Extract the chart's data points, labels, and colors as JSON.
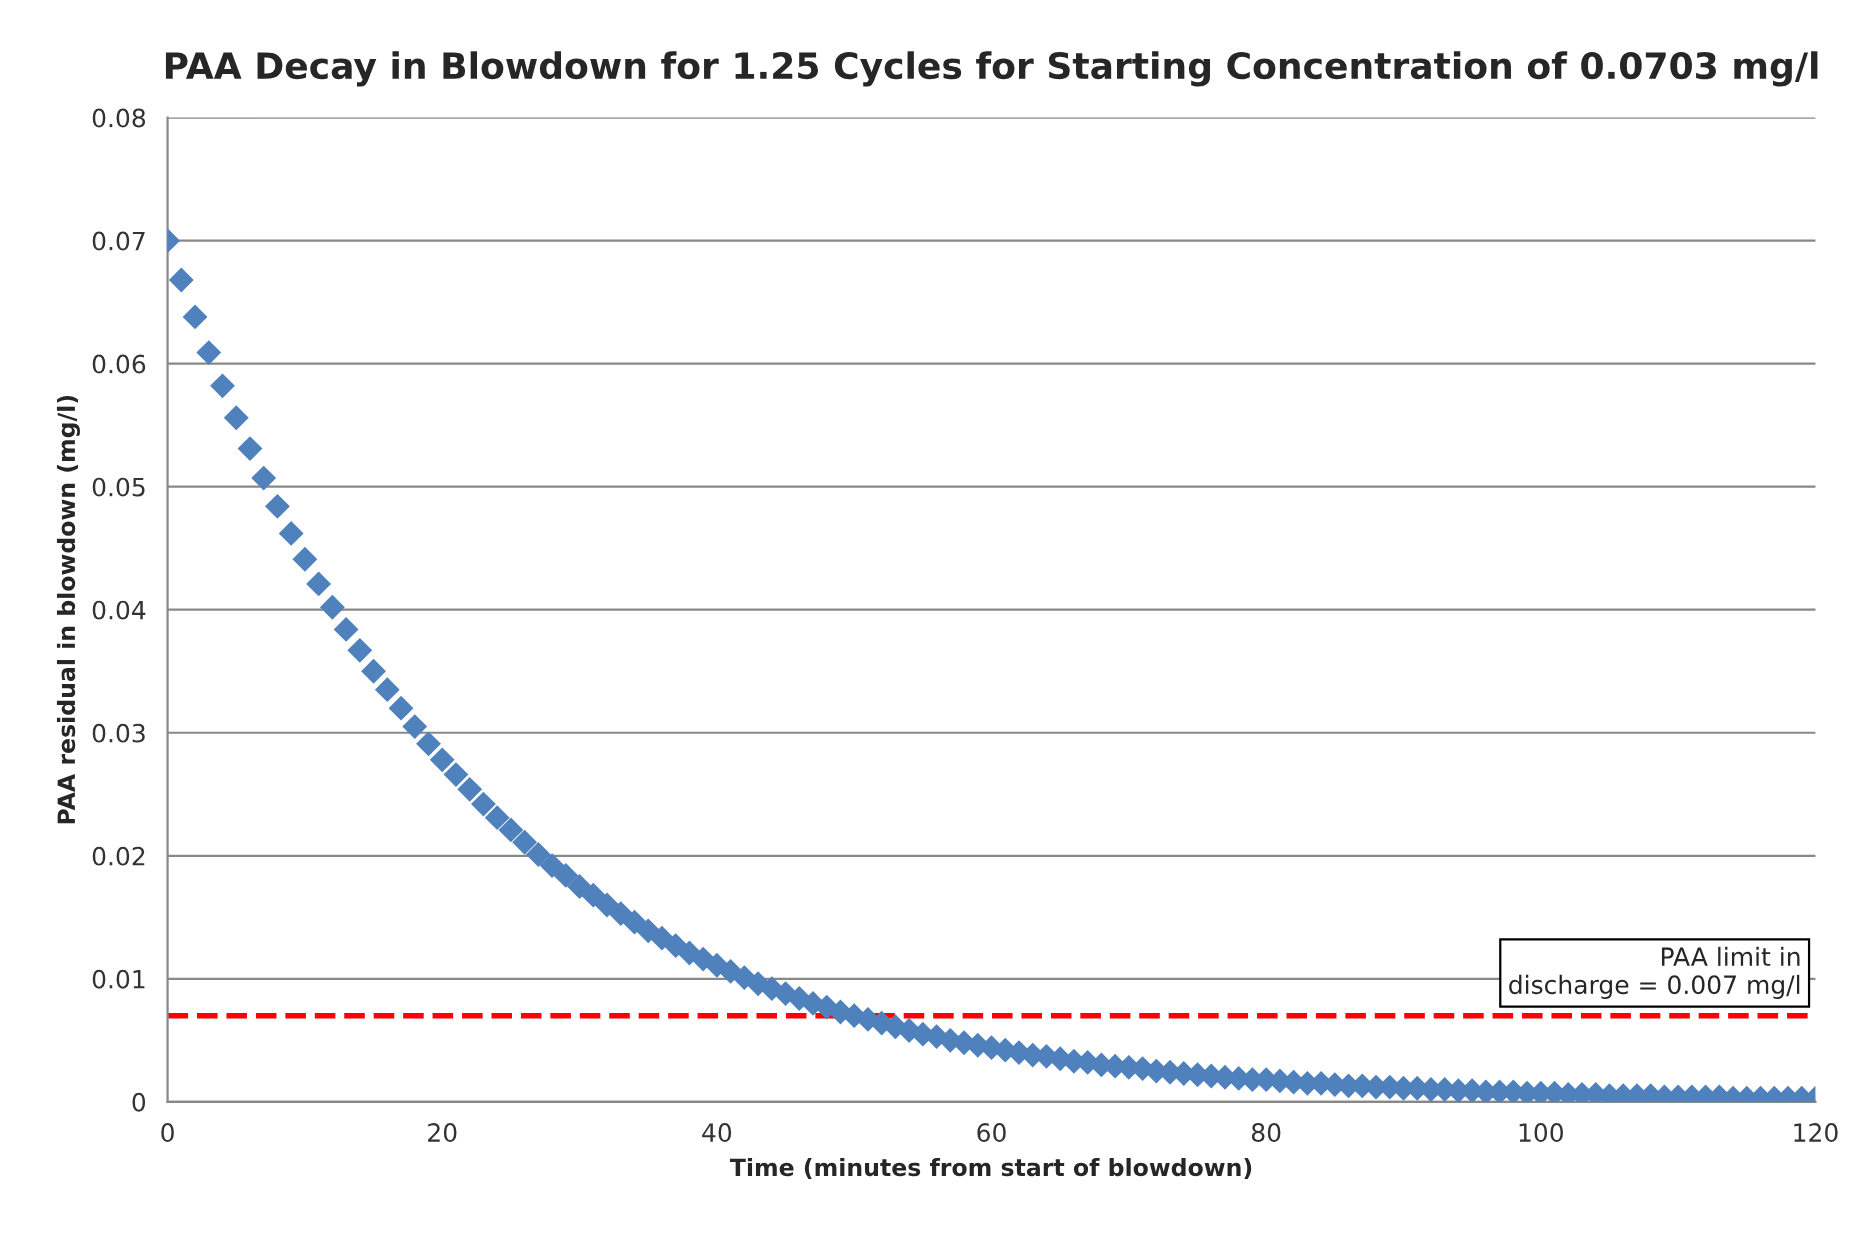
{
  "chart_data": {
    "type": "scatter",
    "title": "PAA Decay in Blowdown for 1.25 Cycles for Starting Concentration of 0.0703 mg/l",
    "xlabel": "Time (minutes from start of blowdown)",
    "ylabel": "PAA residual in blowdown (mg/l)",
    "x": [
      0,
      1,
      2,
      3,
      4,
      5,
      6,
      7,
      8,
      9,
      10,
      11,
      12,
      13,
      14,
      15,
      16,
      17,
      18,
      19,
      20,
      21,
      22,
      23,
      24,
      25,
      26,
      27,
      28,
      29,
      30,
      31,
      32,
      33,
      34,
      35,
      36,
      37,
      38,
      39,
      40,
      41,
      42,
      43,
      44,
      45,
      46,
      47,
      48,
      49,
      50,
      51,
      52,
      53,
      54,
      55,
      56,
      57,
      58,
      59,
      60,
      61,
      62,
      63,
      64,
      65,
      66,
      67,
      68,
      69,
      70,
      71,
      72,
      73,
      74,
      75,
      76,
      77,
      78,
      79,
      80,
      81,
      82,
      83,
      84,
      85,
      86,
      87,
      88,
      89,
      90,
      91,
      92,
      93,
      94,
      95,
      96,
      97,
      98,
      99,
      100,
      101,
      102,
      103,
      104,
      105,
      106,
      107,
      108,
      109,
      110,
      111,
      112,
      113,
      114,
      115,
      116,
      117,
      118,
      119,
      120
    ],
    "series": [
      {
        "color": "#4f81bd",
        "values": [
          0.07,
          0.0668,
          0.0638,
          0.0609,
          0.0582,
          0.0556,
          0.0531,
          0.0507,
          0.0484,
          0.0462,
          0.0441,
          0.0421,
          0.0402,
          0.0384,
          0.0367,
          0.035,
          0.0335,
          0.032,
          0.0305,
          0.0291,
          0.0278,
          0.0266,
          0.0254,
          0.0242,
          0.0231,
          0.0221,
          0.0211,
          0.0201,
          0.0192,
          0.0184,
          0.0175,
          0.0168,
          0.016,
          0.0153,
          0.0146,
          0.0139,
          0.0133,
          0.0127,
          0.0121,
          0.0116,
          0.0111,
          0.0106,
          0.0101,
          0.0096,
          0.0092,
          0.0088,
          0.0084,
          0.008,
          0.0077,
          0.0073,
          0.007,
          0.0067,
          0.0064,
          0.0061,
          0.0058,
          0.0055,
          0.0053,
          0.005,
          0.0048,
          0.0046,
          0.0044,
          0.0042,
          0.004,
          0.0038,
          0.0037,
          0.0035,
          0.0033,
          0.0032,
          0.003,
          0.0029,
          0.0028,
          0.0027,
          0.0025,
          0.0024,
          0.0023,
          0.0022,
          0.0021,
          0.002,
          0.0019,
          0.0018,
          0.0018,
          0.0017,
          0.0016,
          0.0015,
          0.0015,
          0.0014,
          0.0013,
          0.0013,
          0.0012,
          0.0012,
          0.0011,
          0.0011,
          0.001,
          0.001,
          0.0009,
          0.0009,
          0.0008,
          0.0008,
          0.0008,
          0.0007,
          0.0007,
          0.0007,
          0.0006,
          0.0006,
          0.0006,
          0.0005,
          0.0005,
          0.0005,
          0.0005,
          0.0004,
          0.0004,
          0.0004,
          0.0004,
          0.0004,
          0.0003,
          0.0003,
          0.0003,
          0.0003,
          0.0003,
          0.0003,
          0.0003
        ]
      }
    ],
    "ref_lines": [
      {
        "axis": "y",
        "value": 0.007,
        "label": "PAA limit in\ndischarge = 0.007 mg/l",
        "color": "#ff0000",
        "line_style": "dashed"
      }
    ],
    "xlim": [
      0,
      120
    ],
    "xticks": [
      0,
      20,
      40,
      60,
      80,
      100,
      120
    ],
    "ylim": [
      0,
      0.08
    ],
    "yticks": [
      0,
      0.01,
      0.02,
      0.03,
      0.04,
      0.05,
      0.06,
      0.07,
      0.08
    ],
    "grid": "y",
    "marker": "diamond",
    "legend": false
  }
}
